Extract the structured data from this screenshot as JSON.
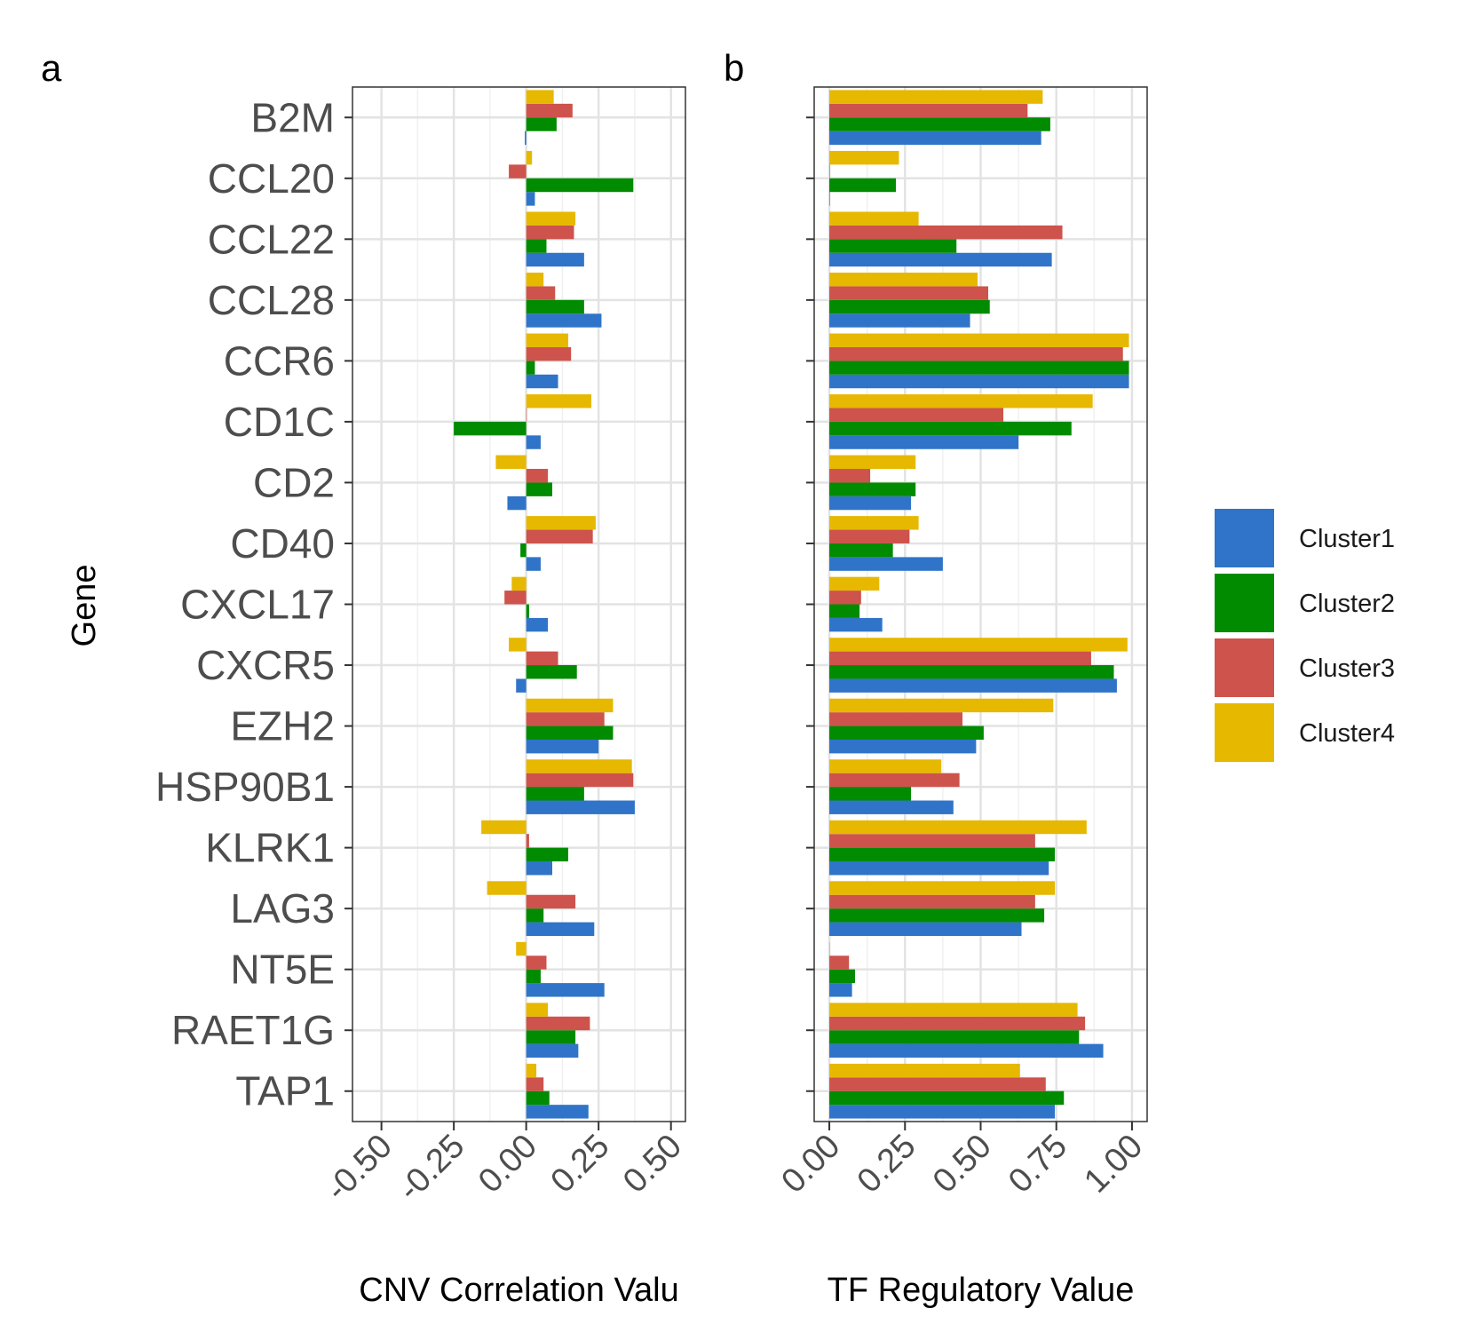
{
  "chart_data": [
    {
      "type": "bar",
      "panel_label": "a",
      "orientation": "horizontal",
      "xlabel": "CNV Correlation Valu",
      "ylabel": "Gene",
      "xlim": [
        -0.6,
        0.55
      ],
      "x_ticks": [
        "-0.50",
        "-0.25",
        "0.00",
        "0.25",
        "0.50"
      ],
      "grid": true,
      "categories": [
        "B2M",
        "CCL20",
        "CCL22",
        "CCL28",
        "CCR6",
        "CD1C",
        "CD2",
        "CD40",
        "CXCL17",
        "CXCR5",
        "EZH2",
        "HSP90B1",
        "KLRK1",
        "LAG3",
        "NT5E",
        "RAET1G",
        "TAP1"
      ],
      "series": [
        {
          "name": "Cluster1",
          "values": [
            -0.005,
            0.03,
            0.2,
            0.26,
            0.11,
            0.05,
            -0.065,
            0.05,
            0.075,
            -0.035,
            0.25,
            0.375,
            0.09,
            0.235,
            0.27,
            0.18,
            0.215
          ]
        },
        {
          "name": "Cluster2",
          "values": [
            0.105,
            0.37,
            0.07,
            0.2,
            0.03,
            -0.25,
            0.09,
            -0.02,
            0.01,
            0.175,
            0.3,
            0.2,
            0.145,
            0.06,
            0.05,
            0.17,
            0.08
          ]
        },
        {
          "name": "Cluster3",
          "values": [
            0.16,
            -0.06,
            0.165,
            0.1,
            0.155,
            0.0,
            0.075,
            0.23,
            -0.075,
            0.11,
            0.27,
            0.37,
            0.01,
            0.17,
            0.07,
            0.22,
            0.06
          ]
        },
        {
          "name": "Cluster4",
          "values": [
            0.095,
            0.02,
            0.17,
            0.06,
            0.145,
            0.225,
            -0.105,
            0.24,
            -0.05,
            -0.06,
            0.3,
            0.365,
            -0.155,
            -0.135,
            -0.035,
            0.075,
            0.035
          ]
        }
      ]
    },
    {
      "type": "bar",
      "panel_label": "b",
      "orientation": "horizontal",
      "xlabel": "TF Regulatory Value",
      "xlim": [
        -0.05,
        1.05
      ],
      "x_ticks": [
        "0.00",
        "0.25",
        "0.50",
        "0.75",
        "1.00"
      ],
      "grid": true,
      "categories": [
        "B2M",
        "CCL20",
        "CCL22",
        "CCL28",
        "CCR6",
        "CD1C",
        "CD2",
        "CD40",
        "CXCL17",
        "CXCR5",
        "EZH2",
        "HSP90B1",
        "KLRK1",
        "LAG3",
        "NT5E",
        "RAET1G",
        "TAP1"
      ],
      "series": [
        {
          "name": "Cluster1",
          "values": [
            0.7,
            0.0,
            0.735,
            0.465,
            0.99,
            0.625,
            0.27,
            0.375,
            0.175,
            0.95,
            0.485,
            0.41,
            0.725,
            0.635,
            0.075,
            0.905,
            0.745
          ]
        },
        {
          "name": "Cluster2",
          "values": [
            0.73,
            0.22,
            0.42,
            0.53,
            0.99,
            0.8,
            0.285,
            0.21,
            0.1,
            0.94,
            0.51,
            0.27,
            0.745,
            0.71,
            0.085,
            0.825,
            0.775
          ]
        },
        {
          "name": "Cluster3",
          "values": [
            0.655,
            0.0,
            0.77,
            0.525,
            0.97,
            0.575,
            0.135,
            0.265,
            0.105,
            0.865,
            0.44,
            0.43,
            0.68,
            0.68,
            0.065,
            0.845,
            0.715
          ]
        },
        {
          "name": "Cluster4",
          "values": [
            0.705,
            0.23,
            0.295,
            0.49,
            0.99,
            0.87,
            0.285,
            0.295,
            0.165,
            0.985,
            0.74,
            0.37,
            0.85,
            0.745,
            0.0,
            0.82,
            0.63
          ]
        }
      ]
    }
  ],
  "legend": {
    "position": "right",
    "items": [
      {
        "name": "Cluster1",
        "color": "#2f74c8"
      },
      {
        "name": "Cluster2",
        "color": "#008b00"
      },
      {
        "name": "Cluster3",
        "color": "#cd534c"
      },
      {
        "name": "Cluster4",
        "color": "#e6b800"
      }
    ]
  }
}
